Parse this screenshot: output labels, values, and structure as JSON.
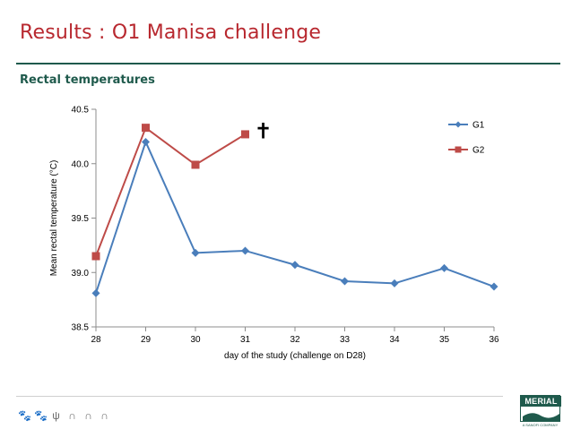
{
  "slide": {
    "title": "Results : O1 Manisa challenge",
    "subtitle": "Rectal temperatures",
    "logo_text": "MERIAL",
    "logo_subtext": "A SANOFI COMPANY"
  },
  "chart_data": {
    "type": "line",
    "title": "",
    "xlabel": "day of  the study (challenge on D28)",
    "ylabel": "Mean rectal temperature (°C)",
    "x": [
      28,
      29,
      30,
      31,
      32,
      33,
      34,
      35,
      36
    ],
    "xticks": [
      "28",
      "29",
      "30",
      "31",
      "32",
      "33",
      "34",
      "35",
      "36"
    ],
    "xlim": [
      28,
      36
    ],
    "ylim": [
      38.5,
      40.5
    ],
    "yticks": [
      "38.5",
      "39.0",
      "39.5",
      "40.0",
      "40.5"
    ],
    "grid": false,
    "legend_position": "top-right",
    "series": [
      {
        "name": "G1",
        "marker": "diamond",
        "color": "#4a7ebb",
        "x": [
          28,
          29,
          30,
          31,
          32,
          33,
          34,
          35,
          36
        ],
        "values": [
          38.81,
          40.2,
          39.18,
          39.2,
          39.07,
          38.92,
          38.9,
          39.04,
          38.87
        ]
      },
      {
        "name": "G2",
        "marker": "square",
        "color": "#be4b48",
        "x": [
          28,
          29,
          30,
          31
        ],
        "values": [
          39.15,
          40.33,
          39.99,
          40.27
        ]
      }
    ],
    "annotations": [
      {
        "text": "✝",
        "near_x": 31,
        "near_y": 40.3
      }
    ]
  }
}
